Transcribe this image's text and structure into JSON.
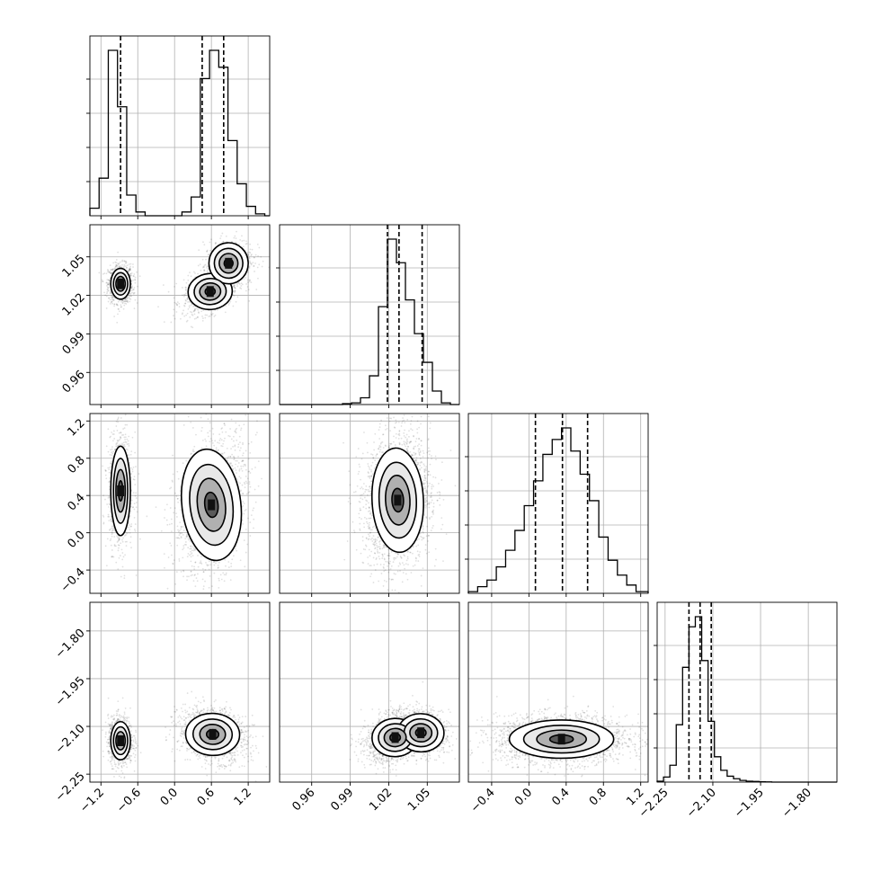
{
  "chart_data": {
    "type": "corner",
    "description_free": true,
    "variables": [
      {
        "range": [
          -1.38,
          1.55
        ],
        "ticks": [
          -1.2,
          -0.6,
          0.0,
          0.6,
          1.2
        ],
        "tick_labels": [
          "−1.2",
          "−0.6",
          "0.0",
          "0.6",
          "1.2"
        ],
        "quantiles": [
          -0.88,
          0.45,
          0.8
        ],
        "hist": {
          "edges": [
            -1.38,
            -1.23,
            -1.08,
            -0.93,
            -0.78,
            -0.63,
            -0.48,
            -0.33,
            -0.18,
            -0.03,
            0.12,
            0.27,
            0.42,
            0.57,
            0.72,
            0.87,
            1.02,
            1.17,
            1.32,
            1.47,
            1.55
          ],
          "counts": [
            0.04,
            0.2,
            0.88,
            0.58,
            0.11,
            0.02,
            0.0,
            0.0,
            0.0,
            0.0,
            0.02,
            0.1,
            0.73,
            0.88,
            0.79,
            0.4,
            0.17,
            0.05,
            0.01,
            0.0
          ]
        }
      },
      {
        "range": [
          0.935,
          1.075
        ],
        "ticks": [
          0.96,
          0.99,
          1.02,
          1.05
        ],
        "tick_labels": [
          "0.96",
          "0.99",
          "1.02",
          "1.05"
        ],
        "quantiles": [
          1.019,
          1.028,
          1.046
        ],
        "hist": {
          "edges": [
            0.935,
            0.942,
            0.949,
            0.956,
            0.963,
            0.97,
            0.977,
            0.984,
            0.991,
            0.998,
            1.005,
            1.012,
            1.019,
            1.026,
            1.033,
            1.04,
            1.047,
            1.054,
            1.061,
            1.068,
            1.075
          ],
          "counts": [
            0.0,
            0.0,
            0.0,
            0.0,
            0.0,
            0.0,
            0.0,
            0.005,
            0.01,
            0.04,
            0.17,
            0.58,
            0.98,
            0.84,
            0.62,
            0.42,
            0.25,
            0.08,
            0.01,
            0.0
          ]
        }
      },
      {
        "range": [
          -0.65,
          1.28
        ],
        "ticks": [
          -0.4,
          0.0,
          0.4,
          0.8,
          1.2
        ],
        "tick_labels": [
          "−0.4",
          "0.0",
          "0.4",
          "0.8",
          "1.2"
        ],
        "quantiles": [
          0.07,
          0.36,
          0.63
        ],
        "hist": {
          "edges": [
            -0.65,
            -0.55,
            -0.45,
            -0.35,
            -0.25,
            -0.15,
            -0.05,
            0.05,
            0.15,
            0.25,
            0.35,
            0.45,
            0.55,
            0.65,
            0.75,
            0.85,
            0.95,
            1.05,
            1.15,
            1.28
          ],
          "counts": [
            0.01,
            0.04,
            0.08,
            0.16,
            0.26,
            0.38,
            0.53,
            0.68,
            0.84,
            0.93,
            1.0,
            0.86,
            0.72,
            0.56,
            0.34,
            0.2,
            0.11,
            0.05,
            0.01
          ]
        }
      },
      {
        "range": [
          -2.275,
          -1.71
        ],
        "ticks": [
          -2.25,
          -2.1,
          -1.95,
          -1.8
        ],
        "tick_labels": [
          "−2.25",
          "−2.10",
          "−1.95",
          "−1.80"
        ],
        "quantiles": [
          -2.175,
          -2.14,
          -2.105
        ],
        "hist": {
          "edges": [
            -2.275,
            -2.255,
            -2.235,
            -2.215,
            -2.195,
            -2.175,
            -2.155,
            -2.135,
            -2.115,
            -2.095,
            -2.075,
            -2.055,
            -2.035,
            -2.015,
            -1.995,
            -1.975,
            -1.955,
            -1.935,
            -1.915,
            -1.895,
            -1.71
          ],
          "counts": [
            0.005,
            0.03,
            0.1,
            0.34,
            0.68,
            0.92,
            0.98,
            0.72,
            0.36,
            0.15,
            0.07,
            0.035,
            0.02,
            0.01,
            0.005,
            0.004,
            0.002,
            0.001,
            0.0,
            0.0
          ]
        }
      }
    ],
    "pairs": [
      {
        "row": 1,
        "col": 0,
        "modes": [
          {
            "mean": [
              -0.88,
              1.029
            ],
            "sd": [
              0.08,
              0.006
            ],
            "rho": 0.0,
            "weight": 0.42
          },
          {
            "mean": [
              0.58,
              1.023
            ],
            "sd": [
              0.18,
              0.007
            ],
            "rho": 0.4,
            "weight": 0.35
          },
          {
            "mean": [
              0.88,
              1.045
            ],
            "sd": [
              0.16,
              0.008
            ],
            "rho": 0.2,
            "weight": 0.23
          }
        ]
      },
      {
        "row": 2,
        "col": 0,
        "modes": [
          {
            "mean": [
              -0.88,
              0.45
            ],
            "sd": [
              0.08,
              0.24
            ],
            "rho": 0.0,
            "weight": 0.42
          },
          {
            "mean": [
              0.6,
              0.3
            ],
            "sd": [
              0.24,
              0.3
            ],
            "rho": 0.3,
            "weight": 0.58
          }
        ]
      },
      {
        "row": 2,
        "col": 1,
        "modes": [
          {
            "mean": [
              1.027,
              0.35
            ],
            "sd": [
              0.01,
              0.28
            ],
            "rho": 0.1,
            "weight": 1.0
          }
        ]
      },
      {
        "row": 3,
        "col": 0,
        "modes": [
          {
            "mean": [
              -0.88,
              -2.145
            ],
            "sd": [
              0.08,
              0.03
            ],
            "rho": 0.0,
            "weight": 0.42
          },
          {
            "mean": [
              0.62,
              -2.125
            ],
            "sd": [
              0.22,
              0.033
            ],
            "rho": -0.25,
            "weight": 0.58
          }
        ]
      },
      {
        "row": 3,
        "col": 1,
        "modes": [
          {
            "mean": [
              1.025,
              -2.135
            ],
            "sd": [
              0.009,
              0.03
            ],
            "rho": 0.3,
            "weight": 0.7
          },
          {
            "mean": [
              1.045,
              -2.12
            ],
            "sd": [
              0.009,
              0.03
            ],
            "rho": -0.2,
            "weight": 0.3
          }
        ]
      },
      {
        "row": 3,
        "col": 2,
        "modes": [
          {
            "mean": [
              0.35,
              -2.14
            ],
            "sd": [
              0.28,
              0.03
            ],
            "rho": 0.0,
            "weight": 1.0
          }
        ]
      }
    ]
  }
}
